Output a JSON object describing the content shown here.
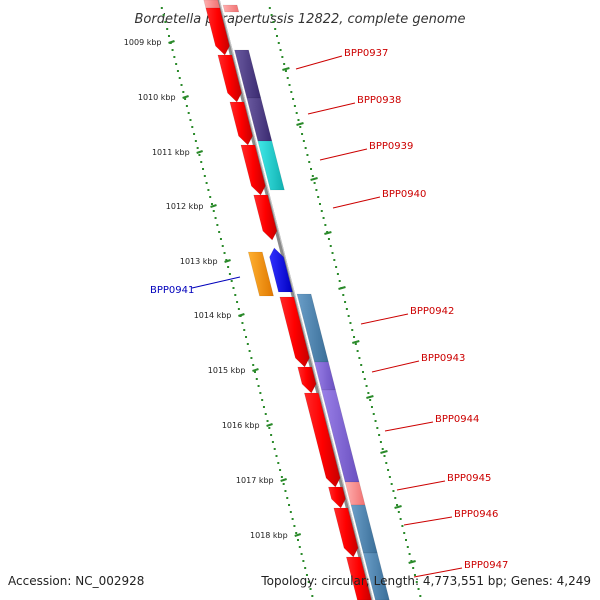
{
  "title": "Bordetella parapertussis 12822, complete genome",
  "accession": "Accession: NC_002928",
  "topology": "Topology: circular; Length: 4,773,551 bp; Genes: 4,249",
  "colors": {
    "backbone": "#8a8a8a",
    "ticks": "#2a8a2a",
    "label_red": "#cc0000",
    "label_blue": "#0000bb"
  },
  "kbp_labels": [
    "1009 kbp",
    "1010 kbp",
    "1011 kbp",
    "1012 kbp",
    "1013 kbp",
    "1014 kbp",
    "1015 kbp",
    "1016 kbp",
    "1017 kbp",
    "1018 kbp"
  ],
  "gene_labels": [
    {
      "text": "BPP0937",
      "color": "red"
    },
    {
      "text": "BPP0938",
      "color": "red"
    },
    {
      "text": "BPP0939",
      "color": "red"
    },
    {
      "text": "BPP0940",
      "color": "red"
    },
    {
      "text": "BPP0941",
      "color": "blue"
    },
    {
      "text": "BPP0942",
      "color": "red"
    },
    {
      "text": "BPP0943",
      "color": "red"
    },
    {
      "text": "BPP0944",
      "color": "red"
    },
    {
      "text": "BPP0945",
      "color": "red"
    },
    {
      "text": "BPP0946",
      "color": "red"
    },
    {
      "text": "BPP0947",
      "color": "red"
    }
  ]
}
